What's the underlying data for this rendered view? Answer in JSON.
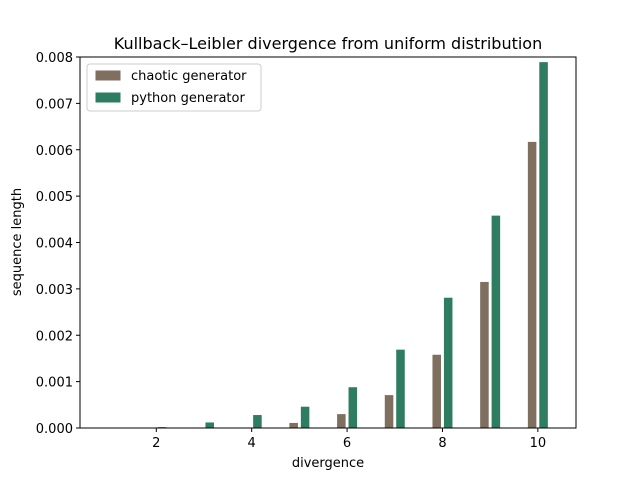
{
  "chart_data": {
    "type": "bar",
    "title": "Kullback–Leibler divergence from uniform distribution",
    "xlabel": "divergence",
    "ylabel": "sequence length",
    "x": [
      1,
      2,
      3,
      4,
      5,
      6,
      7,
      8,
      9,
      10
    ],
    "xticks": [
      2,
      4,
      6,
      8,
      10
    ],
    "xlim": [
      0.4,
      10.8
    ],
    "ylim": [
      0,
      0.008
    ],
    "yticks": [
      0.0,
      0.001,
      0.002,
      0.003,
      0.004,
      0.005,
      0.006,
      0.007,
      0.008
    ],
    "ytick_labels": [
      "0.000",
      "0.001",
      "0.002",
      "0.003",
      "0.004",
      "0.005",
      "0.006",
      "0.007",
      "0.008"
    ],
    "grid": false,
    "legend_position": "top-left",
    "series": [
      {
        "name": "chaotic generator",
        "color": "#7f6f5f",
        "values": [
          0.0,
          0.0,
          0.0,
          0.0,
          0.00012,
          0.00031,
          0.00072,
          0.00159,
          0.00316,
          0.00618
        ]
      },
      {
        "name": "python generator",
        "color": "#2e7d60",
        "values": [
          0.0,
          3e-05,
          0.00013,
          0.00029,
          0.00047,
          0.00089,
          0.0017,
          0.00282,
          0.00459,
          0.0079
        ]
      }
    ]
  }
}
